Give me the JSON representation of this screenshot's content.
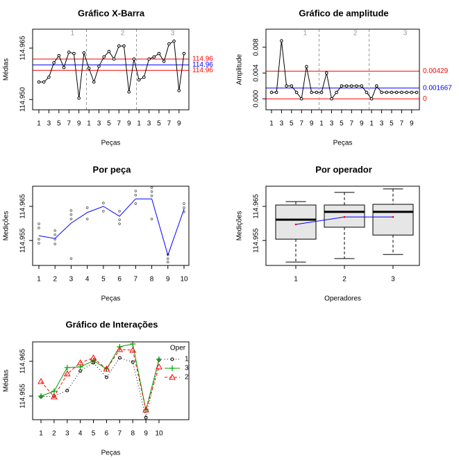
{
  "chart_data": [
    {
      "type": "control",
      "title": "Gráfico X-Barra",
      "ylabel": "Médias",
      "xlabel": "Peças",
      "groups": [
        "1",
        "2",
        "3"
      ],
      "categories": [
        1,
        null,
        3,
        null,
        5,
        null,
        7,
        null,
        9,
        null,
        1,
        null,
        3,
        null,
        5,
        null,
        7,
        null,
        9,
        null,
        1,
        null,
        3,
        null,
        5,
        null,
        7,
        null,
        9,
        null
      ],
      "values": [
        114.9551,
        114.9551,
        114.9565,
        114.9607,
        114.9628,
        114.9593,
        114.9638,
        114.9634,
        114.9504,
        114.9636,
        114.9591,
        114.9551,
        114.9597,
        114.9624,
        114.964,
        114.9618,
        114.9656,
        114.9656,
        114.9522,
        114.9618,
        114.9557,
        114.9565,
        114.9618,
        114.9624,
        114.9634,
        114.9611,
        114.9662,
        114.967,
        114.9526,
        114.9634
      ],
      "color": "#000000",
      "lines": {
        "values": [
          114.9618,
          114.9601,
          114.9585
        ],
        "value_labels": [
          "114.96",
          "114.96",
          "114.96"
        ],
        "colors": [
          "#ff0000",
          "#0000ff",
          "#ff0000"
        ]
      },
      "ylim": [
        114.947,
        114.9705
      ],
      "yticks": [
        {
          "value": 114.95,
          "label": "114.950"
        },
        114.965
      ]
    },
    {
      "type": "control",
      "title": "Gráfico de amplitude",
      "ylabel": "Amplitude",
      "xlabel": "Peças",
      "groups": [
        "1",
        "2",
        "3"
      ],
      "categories": [
        1,
        null,
        3,
        null,
        5,
        null,
        7,
        null,
        9,
        null,
        1,
        null,
        3,
        null,
        5,
        null,
        7,
        null,
        9,
        null,
        1,
        null,
        3,
        null,
        5,
        null,
        7,
        null,
        9,
        null
      ],
      "values": [
        0.001,
        0.001,
        0.009,
        0.002,
        0.002,
        0.001,
        0,
        0.005,
        0.001,
        0.001,
        0.001,
        0.004,
        0,
        0.001,
        0.002,
        0.002,
        0.002,
        0.002,
        0.002,
        0.001,
        0,
        0.002,
        0.001,
        0.001,
        0.001,
        0.001,
        0.001,
        0.001,
        0.001,
        0.001
      ],
      "color": "#000000",
      "lines": {
        "values": [
          0.00429,
          0.001667,
          0
        ],
        "colors": [
          "#ff0000",
          "#0000ff",
          "#ff0000"
        ]
      },
      "ylim": [
        -0.0017,
        0.0108
      ],
      "yticks": [
        {
          "value": 0,
          "label": "0.000"
        },
        0.004,
        0.008
      ]
    },
    {
      "type": "line",
      "title": "Por peça",
      "ylabel": "Medições",
      "xlabel": "Peças",
      "categories": [
        1,
        2,
        3,
        4,
        5,
        6,
        7,
        8,
        9,
        10
      ],
      "values": [
        114.9564,
        114.9556,
        114.9601,
        114.9632,
        114.965,
        114.9621,
        114.9672,
        114.9672,
        114.9507,
        114.9642
      ],
      "color": "#0000ff",
      "points": {
        "x": [
          1,
          1,
          1,
          1,
          2,
          2,
          2,
          2,
          3,
          3,
          3,
          3,
          4,
          4,
          5,
          5,
          6,
          6,
          6,
          7,
          7,
          7,
          8,
          8,
          8,
          8,
          9,
          9,
          9,
          10,
          10,
          10
        ],
        "values": [
          114.9599,
          114.9587,
          114.9554,
          114.9542,
          114.9579,
          114.9567,
          114.9554,
          114.954,
          114.9638,
          114.9626,
          114.9613,
          114.9497,
          114.9646,
          114.9613,
          114.966,
          114.9636,
          114.9636,
          114.9611,
          114.9599,
          114.9695,
          114.9683,
          114.9658,
          114.9705,
          114.9693,
          114.9681,
          114.9613,
          114.9509,
          114.9497,
          114.9487,
          114.9658,
          114.9646,
          114.9634
        ],
        "color": "#555555"
      },
      "ylim": [
        114.9477,
        114.9709
      ],
      "yticks": [
        114.955,
        114.965
      ]
    },
    {
      "type": "box",
      "title": "Por operador",
      "ylabel": "Medições",
      "xlabel": "Operadores",
      "categories": [
        1,
        2,
        3
      ],
      "boxes": [
        {
          "whisker_low": 114.9487,
          "q1": 114.9554,
          "median": 114.9611,
          "q3": 114.9654,
          "whisker_high": 114.9664
        },
        {
          "whisker_low": 114.9497,
          "q1": 114.9589,
          "median": 114.9634,
          "q3": 114.9654,
          "whisker_high": 114.9691
        },
        {
          "whisker_low": 114.9509,
          "q1": 114.9566,
          "median": 114.9634,
          "q3": 114.9656,
          "whisker_high": 114.9701
        }
      ],
      "box_color": "#e6e6e6",
      "means": [
        114.9597,
        114.9619,
        114.9619
      ],
      "mean_line_color": "#0000ff",
      "mean_point_color": "#ff0000",
      "ylim": [
        114.9477,
        114.9709
      ],
      "yticks": [
        114.955,
        114.965
      ]
    },
    {
      "type": "interaction",
      "title": "Gráfico de Interações",
      "ylabel": "Médias",
      "xlabel": "Peças",
      "legend_title": "Oper",
      "categories": [
        1,
        2,
        3,
        4,
        5,
        6,
        7,
        8,
        9,
        10
      ],
      "series": [
        {
          "name": "1",
          "color": "#000000",
          "dash": "dotted",
          "marker": "circle",
          "values": [
            114.9548,
            114.955,
            114.9566,
            114.9622,
            114.9646,
            114.9604,
            114.966,
            114.9648,
            114.9488,
            114.9654
          ]
        },
        {
          "name": "3",
          "color": "#00a000",
          "dash": "solid",
          "marker": "plus",
          "values": [
            114.955,
            114.9564,
            114.9632,
            114.9634,
            114.9652,
            114.9628,
            114.9692,
            114.97,
            114.951,
            114.9656
          ]
        },
        {
          "name": "2",
          "color": "#ff0000",
          "dash": "dashed",
          "marker": "triangle",
          "values": [
            114.9592,
            114.9548,
            114.9614,
            114.9646,
            114.966,
            114.9628,
            114.9684,
            114.9682,
            114.951,
            114.9634
          ]
        }
      ],
      "ylim": [
        114.9482,
        114.9706
      ],
      "yticks": [
        114.955,
        114.965
      ]
    }
  ]
}
